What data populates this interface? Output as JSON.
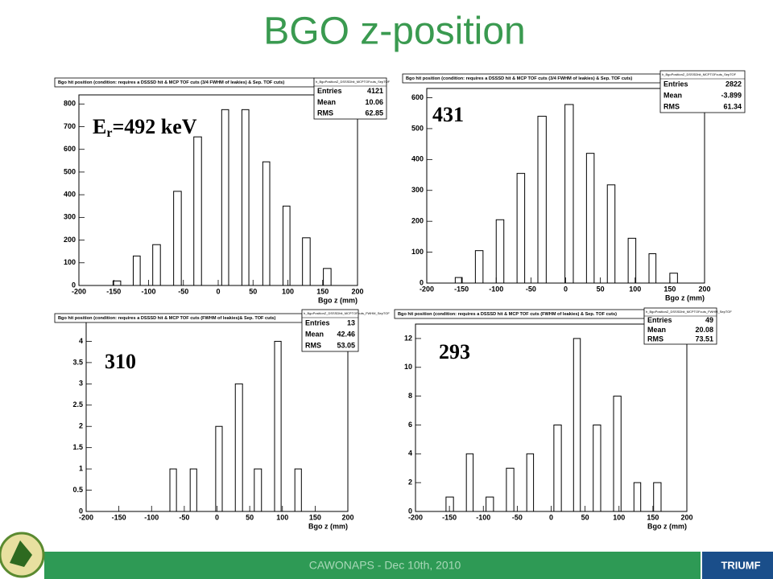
{
  "title": "BGO z-position",
  "footer": "CAWONAPS - Dec 10th, 2010",
  "logo": "TRIUMF",
  "stats_labels": [
    "Entries",
    "Mean",
    "RMS"
  ],
  "chart_data": [
    {
      "type": "histogram",
      "title": "Bgo hit position (condition: requires a DSSSD hit & MCP TOF cuts (3/4 FWHM of leakies) & Sep. TOF cuts)",
      "stats": {
        "name": "h_BgoPositionZ_DSSSDhit_MCPTOFcuts_SepTOF",
        "entries": 4121,
        "mean": 10.06,
        "rms": 62.85
      },
      "annotation": {
        "main": "E",
        "sub": "r",
        "rest": "=492 keV"
      },
      "x_label": "Bgo z (mm)",
      "color": "#000000",
      "bins": [
        -151,
        -140,
        -122,
        -112,
        -94,
        -83,
        -64,
        -53,
        -35,
        -24,
        5,
        15,
        34,
        44,
        64,
        74,
        93,
        103,
        121,
        132,
        151,
        162
      ],
      "values": [
        20,
        0,
        130,
        0,
        180,
        0,
        415,
        0,
        655,
        0,
        775,
        0,
        775,
        0,
        545,
        0,
        350,
        0,
        210,
        0,
        75
      ],
      "xlim": [
        -200,
        200
      ],
      "xticks": [
        -200,
        -150,
        -100,
        -50,
        0,
        50,
        100,
        150,
        200
      ],
      "ylim": [
        0,
        840
      ],
      "yticks": [
        0,
        100,
        200,
        300,
        400,
        500,
        600,
        700,
        800
      ]
    },
    {
      "type": "histogram",
      "title": "Bgo hit position (condition: requires a DSSSD hit & MCP TOF cuts (3/4 FWHM of leakies) & Sep. TOF cuts)",
      "stats": {
        "name": "h_BgoPositionZ_DSSSDhit_MCPTOFcuts_SepTOF",
        "entries": 2822,
        "mean": -3.899,
        "rms": 61.34
      },
      "annotation": {
        "main": "431"
      },
      "x_label": "Bgo z (mm)",
      "color": "#000000",
      "bins": [
        -159,
        -149,
        -130,
        -119,
        -100,
        -89,
        -70,
        -59,
        -40,
        -28,
        -1,
        11,
        30,
        41,
        60,
        71,
        90,
        101,
        120,
        130,
        150,
        161
      ],
      "values": [
        18,
        0,
        105,
        0,
        205,
        0,
        355,
        0,
        540,
        0,
        578,
        0,
        420,
        0,
        318,
        0,
        145,
        0,
        95,
        0,
        32
      ],
      "xlim": [
        -200,
        200
      ],
      "xticks": [
        -200,
        -150,
        -100,
        -50,
        0,
        50,
        100,
        150,
        200
      ],
      "ylim": [
        0,
        630
      ],
      "yticks": [
        0,
        100,
        200,
        300,
        400,
        500,
        600
      ]
    },
    {
      "type": "histogram",
      "title": "Bgo hit position (condition: requires a DSSSD hit & MCP TOF cuts (FWHM of leakies)& Sep. TOF cuts)",
      "stats": {
        "name": "h_BgoPositionZ_DSSSDhit_MCPTOFcuts_FWHM_SepTOF",
        "entries": 13,
        "mean": 42.46,
        "rms": 53.05
      },
      "annotation": {
        "main": "310"
      },
      "x_label": "Bgo z (mm)",
      "color": "#000000",
      "bins": [
        -72,
        -62,
        -41,
        -31,
        -2,
        8,
        28,
        39,
        57,
        68,
        88,
        98,
        119,
        129
      ],
      "values": [
        1,
        0,
        1,
        0,
        2,
        0,
        3,
        0,
        1,
        0,
        4,
        0,
        1
      ],
      "xlim": [
        -200,
        200
      ],
      "xticks": [
        -200,
        -150,
        -100,
        -50,
        0,
        50,
        100,
        150,
        200
      ],
      "ylim": [
        0,
        4.5
      ],
      "yticks": [
        0,
        0.5,
        1,
        1.5,
        2,
        2.5,
        3,
        3.5,
        4
      ]
    },
    {
      "type": "histogram",
      "title": "Bgo hit position (condition: requires a DSSSD hit & MCP TOF cuts (FWHM of leakies) & Sep. TOF cuts)",
      "stats": {
        "name": "h_BgoPositionZ_DSSSDhit_MCPTOFcuts_FWHM_SepTOF",
        "entries": 49,
        "mean": 20.08,
        "rms": 73.51
      },
      "annotation": {
        "main": "293"
      },
      "x_label": "Bgo z (mm)",
      "color": "#000000",
      "bins": [
        -155,
        -144,
        -125,
        -115,
        -96,
        -85,
        -66,
        -55,
        -36,
        -26,
        4,
        15,
        33,
        43,
        62,
        73,
        92,
        103,
        122,
        132,
        151,
        162
      ],
      "values": [
        1,
        0,
        4,
        0,
        1,
        0,
        3,
        0,
        4,
        0,
        6,
        0,
        12,
        0,
        6,
        0,
        8,
        0,
        2,
        0,
        2
      ],
      "xlim": [
        -200,
        200
      ],
      "xticks": [
        -200,
        -150,
        -100,
        -50,
        0,
        50,
        100,
        150,
        200
      ],
      "ylim": [
        0,
        13
      ],
      "yticks": [
        0,
        2,
        4,
        6,
        8,
        10,
        12
      ]
    }
  ]
}
